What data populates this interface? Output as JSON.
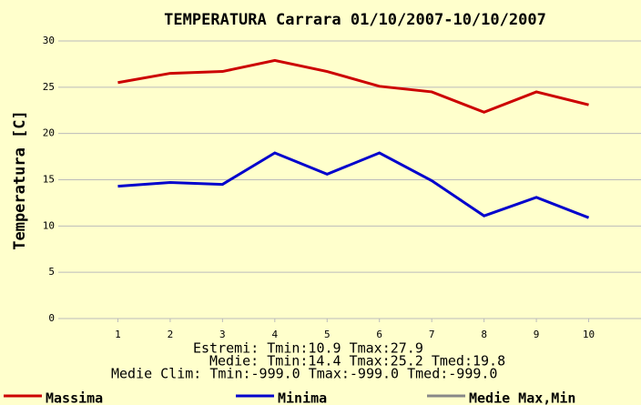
{
  "chart_data": {
    "type": "line",
    "title": "TEMPERATURA Carrara 01/10/2007-10/10/2007",
    "y_label": "Temperatura [C]",
    "x": [
      1,
      2,
      3,
      4,
      5,
      6,
      7,
      8,
      9,
      10
    ],
    "xlim": [
      0,
      11
    ],
    "xticks": [
      1,
      2,
      3,
      4,
      5,
      6,
      7,
      8,
      9,
      10
    ],
    "ylim": [
      0,
      30
    ],
    "yticks": [
      0,
      5,
      10,
      15,
      20,
      25,
      30
    ],
    "grid": true,
    "series": [
      {
        "name": "Massima",
        "color": "#cc0000",
        "values": [
          25.5,
          26.5,
          26.7,
          27.9,
          26.7,
          25.1,
          24.5,
          22.3,
          24.5,
          23.1
        ]
      },
      {
        "name": "Minima",
        "color": "#0000cc",
        "values": [
          14.3,
          14.7,
          14.5,
          17.9,
          15.6,
          17.9,
          14.9,
          11.1,
          13.1,
          10.9
        ]
      }
    ],
    "extra_legend": [
      {
        "name": "Medie Max,Min",
        "color": "#888888"
      }
    ],
    "annotations": [
      "Estremi: Tmin:10.9 Tmax:27.9",
      "Medie: Tmin:14.4 Tmax:25.2 Tmed:19.8",
      "Medie Clim: Tmin:-999.0 Tmax:-999.0 Tmed:-999.0"
    ]
  }
}
